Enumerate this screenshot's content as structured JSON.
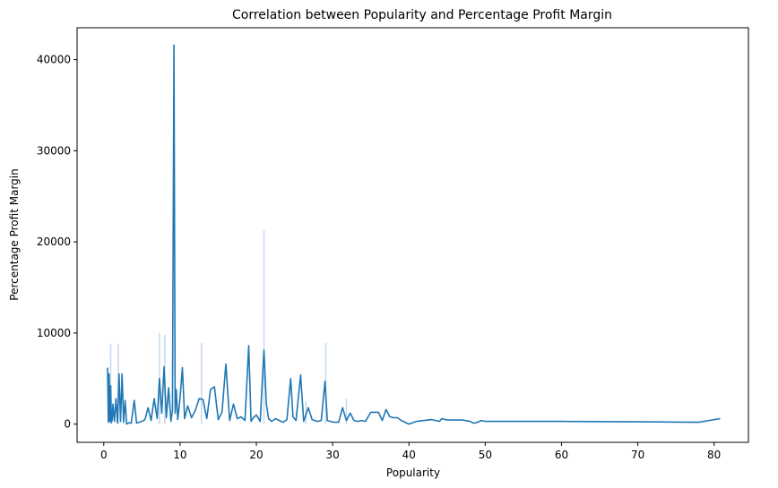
{
  "chart_data": {
    "type": "line",
    "title": "Correlation between Popularity and Percentage Profit Margin",
    "xlabel": "Popularity",
    "ylabel": "Percentage Profit Margin",
    "xlim": [
      -3.5,
      84.5
    ],
    "ylim": [
      -2000,
      43500
    ],
    "xticks": [
      0,
      10,
      20,
      30,
      40,
      50,
      60,
      70,
      80
    ],
    "yticks": [
      0,
      10000,
      20000,
      30000,
      40000
    ],
    "grid": false,
    "legend": "none",
    "line_color": "#1f77b4",
    "band_color": "#c6dbef",
    "series": [
      {
        "x": [
          0.5,
          0.6,
          0.7,
          0.8,
          0.9,
          1.0,
          1.1,
          1.2,
          1.4,
          1.6,
          1.8,
          2.0,
          2.2,
          2.4,
          2.6,
          2.8,
          3.0,
          3.3,
          3.6,
          4.0,
          4.3,
          4.6,
          5.0,
          5.4,
          5.8,
          6.2,
          6.6,
          7.0,
          7.3,
          7.6,
          7.9,
          8.2,
          8.5,
          8.8,
          9.0,
          9.2,
          9.35,
          9.5,
          9.7,
          10.0,
          10.3,
          10.6,
          11.0,
          11.5,
          12.0,
          12.5,
          13.0,
          13.5,
          14.0,
          14.5,
          15.0,
          15.5,
          16.0,
          16.5,
          17.0,
          17.5,
          18.0,
          18.5,
          19.0,
          19.3,
          19.6,
          20.0,
          20.5,
          21.0,
          21.3,
          21.6,
          22.0,
          22.5,
          23.0,
          23.5,
          24.0,
          24.5,
          24.8,
          25.2,
          25.8,
          26.2,
          26.8,
          27.3,
          28.0,
          28.5,
          29.0,
          29.3,
          29.7,
          30.2,
          30.8,
          31.3,
          31.8,
          32.3,
          32.8,
          33.3,
          33.8,
          34.3,
          35.0,
          36.0,
          36.5,
          37.0,
          37.5,
          38.0,
          38.5,
          39.0,
          40.0,
          41.0,
          42.0,
          43.0,
          44.0,
          44.3,
          45.0,
          47.0,
          48.0,
          48.5,
          49.0,
          49.5,
          50.0,
          60.0,
          70.0,
          78.0,
          80.8
        ],
        "y": [
          6200,
          200,
          5500,
          300,
          4200,
          150,
          500,
          2200,
          300,
          2800,
          100,
          5500,
          300,
          5500,
          200,
          2600,
          0,
          150,
          100,
          2600,
          100,
          200,
          300,
          500,
          1800,
          400,
          2800,
          600,
          5000,
          1200,
          6300,
          700,
          4000,
          300,
          1500,
          41600,
          1200,
          3800,
          500,
          2900,
          6200,
          600,
          2000,
          700,
          1500,
          2800,
          2700,
          600,
          3800,
          4100,
          500,
          1300,
          6600,
          400,
          2200,
          600,
          800,
          400,
          8600,
          300,
          700,
          1000,
          300,
          8100,
          2300,
          600,
          300,
          600,
          400,
          200,
          500,
          5000,
          800,
          400,
          5400,
          300,
          1800,
          500,
          300,
          400,
          4700,
          400,
          300,
          200,
          200,
          1800,
          400,
          1200,
          400,
          300,
          400,
          300,
          1300,
          1300,
          400,
          1600,
          800,
          700,
          700,
          400,
          0,
          300,
          400,
          500,
          300,
          600,
          450,
          450,
          300,
          100,
          200,
          400,
          300,
          300,
          250,
          200,
          600
        ]
      }
    ],
    "band_spikes": [
      {
        "x": 0.9,
        "y": 8800
      },
      {
        "x": 1.9,
        "y": 8800
      },
      {
        "x": 7.3,
        "y": 10000
      },
      {
        "x": 8.0,
        "y": 9800
      },
      {
        "x": 12.8,
        "y": 8900
      },
      {
        "x": 21.0,
        "y": 21300
      },
      {
        "x": 29.1,
        "y": 8900
      },
      {
        "x": 31.8,
        "y": 2800
      },
      {
        "x": 26.5,
        "y": 2500
      }
    ]
  }
}
